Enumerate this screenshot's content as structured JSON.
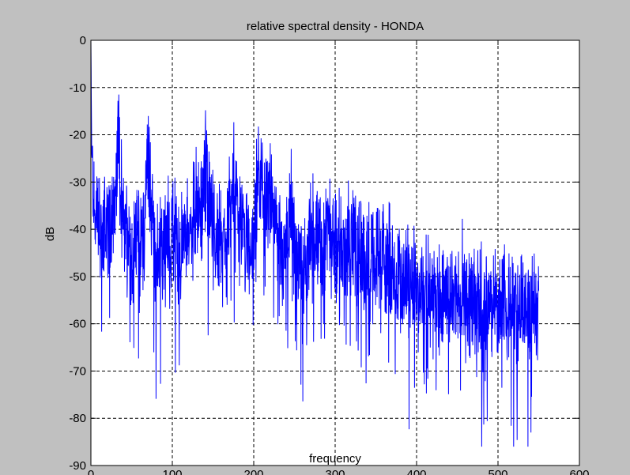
{
  "chart_data": {
    "type": "line",
    "title": "relative spectral density - HONDA",
    "xlabel": "frequency",
    "ylabel": "dB",
    "xlim": [
      0,
      600
    ],
    "ylim": [
      -90,
      0
    ],
    "xticks": [
      0,
      100,
      200,
      300,
      400,
      500,
      600
    ],
    "yticks": [
      0,
      -10,
      -20,
      -30,
      -40,
      -50,
      -60,
      -70,
      -80,
      -90
    ],
    "grid": true,
    "line_color": "#0000ff",
    "series": [
      {
        "x": [
          0,
          1,
          3,
          5,
          8,
          12,
          18,
          25,
          30,
          34,
          36,
          40,
          45,
          50,
          55,
          60,
          65,
          70,
          75,
          80,
          85,
          90,
          95,
          100,
          105,
          110,
          115,
          120,
          125,
          130,
          135,
          140,
          145,
          150,
          155,
          160,
          165,
          170,
          175,
          180,
          185,
          190,
          195,
          200,
          205,
          210,
          215,
          220,
          225,
          230,
          235,
          240,
          245,
          250,
          255,
          260,
          265,
          270,
          275,
          280,
          285,
          290,
          295,
          300,
          305,
          310,
          315,
          320,
          325,
          330,
          335,
          340,
          345,
          350,
          355,
          360,
          365,
          370,
          375,
          380,
          385,
          390,
          395,
          400,
          405,
          410,
          415,
          420,
          425,
          430,
          435,
          440,
          445,
          450,
          455,
          460,
          465,
          470,
          475,
          480,
          485,
          490,
          495,
          500,
          505,
          510,
          515,
          520,
          525,
          530,
          535,
          540,
          545,
          550
        ],
        "y": [
          0,
          -24,
          -31,
          -40,
          -36,
          -42,
          -38,
          -40,
          -36,
          -17,
          -30,
          -40,
          -42,
          -47,
          -43,
          -45,
          -40,
          -25,
          -36,
          -45,
          -47,
          -43,
          -41,
          -40,
          -42,
          -45,
          -40,
          -43,
          -38,
          -36,
          -38,
          -26,
          -34,
          -40,
          -41,
          -44,
          -42,
          -37,
          -30,
          -33,
          -39,
          -42,
          -46,
          -40,
          -29,
          -31,
          -35,
          -33,
          -38,
          -40,
          -45,
          -42,
          -37,
          -43,
          -47,
          -45,
          -48,
          -39,
          -42,
          -43,
          -44,
          -40,
          -41,
          -42,
          -44,
          -43,
          -45,
          -41,
          -44,
          -43,
          -46,
          -45,
          -46,
          -47,
          -47,
          -48,
          -49,
          -50,
          -51,
          -49,
          -50,
          -51,
          -50,
          -51,
          -52,
          -53,
          -52,
          -53,
          -54,
          -54,
          -55,
          -54,
          -55,
          -55,
          -56,
          -55,
          -56,
          -56,
          -56,
          -57,
          -56,
          -57,
          -57,
          -57,
          -56,
          -57,
          -57,
          -56,
          -57,
          -57,
          -57,
          -56,
          -57,
          -57
        ]
      }
    ]
  }
}
